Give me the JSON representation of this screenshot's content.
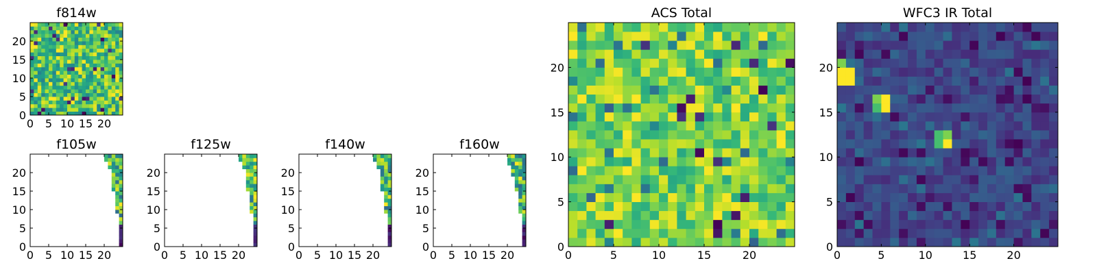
{
  "chart_data": [
    {
      "id": "f814w",
      "type": "heatmap",
      "title": "f814w",
      "xlim": [
        0,
        25
      ],
      "ylim": [
        0,
        25
      ],
      "xticks": [
        0,
        5,
        10,
        15,
        20
      ],
      "yticks": [
        0,
        5,
        10,
        15,
        20
      ],
      "grid": false,
      "coverage": "full",
      "texture": "noisy",
      "colormap": "viridis"
    },
    {
      "id": "f105w",
      "type": "heatmap",
      "title": "f105w",
      "xlim": [
        0,
        25
      ],
      "ylim": [
        0,
        25
      ],
      "xticks": [
        0,
        5,
        10,
        15,
        20
      ],
      "yticks": [
        0,
        5,
        10,
        15,
        20
      ],
      "grid": false,
      "coverage": "right-edge",
      "colormap": "viridis",
      "edge": [
        [
          20,
          23,
          24
        ],
        [
          20,
          23,
          24
        ],
        [
          21,
          24,
          24
        ],
        [
          21,
          24,
          24
        ],
        [
          22,
          24,
          24
        ],
        [
          22,
          24,
          24
        ],
        [
          22,
          24,
          24
        ],
        [
          22,
          24,
          24
        ],
        [
          22,
          24,
          24
        ],
        [
          22,
          24,
          24
        ],
        [
          23,
          24,
          24
        ],
        [
          23,
          24,
          24
        ],
        [
          23,
          24,
          24
        ],
        [
          23,
          24,
          24
        ],
        [
          23,
          24,
          24
        ],
        [
          23,
          24,
          24
        ],
        [
          24,
          24,
          24
        ],
        [
          24,
          24,
          24
        ],
        [
          24,
          24,
          24
        ],
        [
          24,
          24,
          24
        ],
        [
          24,
          24,
          24
        ],
        [
          24,
          24,
          24
        ],
        [
          24,
          24,
          24
        ],
        [
          24,
          24,
          24
        ],
        [
          24,
          24,
          24
        ]
      ]
    },
    {
      "id": "f125w",
      "type": "heatmap",
      "title": "f125w",
      "xlim": [
        0,
        25
      ],
      "ylim": [
        0,
        25
      ],
      "xticks": [
        0,
        5,
        10,
        15,
        20
      ],
      "yticks": [
        0,
        5,
        10,
        15,
        20
      ],
      "grid": false,
      "coverage": "right-edge",
      "colormap": "viridis",
      "edge": [
        [
          20,
          22,
          24
        ],
        [
          20,
          22,
          24
        ],
        [
          21,
          23,
          24
        ],
        [
          21,
          23,
          24
        ],
        [
          22,
          23,
          24
        ],
        [
          22,
          23,
          24
        ],
        [
          22,
          23,
          24
        ],
        [
          22,
          23,
          24
        ],
        [
          22,
          23,
          24
        ],
        [
          22,
          23,
          24
        ],
        [
          23,
          24,
          24
        ],
        [
          23,
          24,
          24
        ],
        [
          23,
          24,
          24
        ],
        [
          23,
          24,
          24
        ],
        [
          23,
          24,
          24
        ],
        [
          23,
          24,
          24
        ],
        [
          24,
          24,
          24
        ],
        [
          24,
          24,
          24
        ],
        [
          24,
          24,
          24
        ],
        [
          24,
          24,
          24
        ],
        [
          24,
          24,
          24
        ],
        [
          24,
          24,
          24
        ],
        [
          24,
          24,
          24
        ],
        [
          24,
          24,
          24
        ],
        [
          24,
          24,
          24
        ]
      ]
    },
    {
      "id": "f140w",
      "type": "heatmap",
      "title": "f140w",
      "xlim": [
        0,
        25
      ],
      "ylim": [
        0,
        25
      ],
      "xticks": [
        0,
        5,
        10,
        15,
        20
      ],
      "yticks": [
        0,
        5,
        10,
        15,
        20
      ],
      "grid": false,
      "coverage": "right-edge",
      "colormap": "viridis",
      "edge": [
        [
          20,
          22,
          24
        ],
        [
          20,
          22,
          24
        ],
        [
          21,
          23,
          24
        ],
        [
          21,
          23,
          24
        ],
        [
          22,
          23,
          24
        ],
        [
          22,
          23,
          24
        ],
        [
          22,
          23,
          24
        ],
        [
          22,
          23,
          24
        ],
        [
          22,
          23,
          24
        ],
        [
          22,
          23,
          24
        ],
        [
          23,
          24,
          24
        ],
        [
          23,
          24,
          24
        ],
        [
          23,
          24,
          24
        ],
        [
          23,
          24,
          24
        ],
        [
          23,
          24,
          24
        ],
        [
          23,
          24,
          24
        ],
        [
          24,
          24,
          24
        ],
        [
          24,
          24,
          24
        ],
        [
          24,
          24,
          24
        ],
        [
          24,
          24,
          24
        ],
        [
          24,
          24,
          24
        ],
        [
          24,
          24,
          24
        ],
        [
          24,
          24,
          24
        ],
        [
          24,
          24,
          24
        ],
        [
          24,
          24,
          24
        ]
      ]
    },
    {
      "id": "f160w",
      "type": "heatmap",
      "title": "f160w",
      "xlim": [
        0,
        25
      ],
      "ylim": [
        0,
        25
      ],
      "xticks": [
        0,
        5,
        10,
        15,
        20
      ],
      "yticks": [
        0,
        5,
        10,
        15,
        20
      ],
      "grid": false,
      "coverage": "right-edge",
      "colormap": "viridis",
      "edge": [
        [
          20,
          22,
          24
        ],
        [
          20,
          22,
          24
        ],
        [
          20,
          22,
          24
        ],
        [
          21,
          23,
          24
        ],
        [
          21,
          23,
          24
        ],
        [
          21,
          23,
          24
        ],
        [
          22,
          23,
          24
        ],
        [
          22,
          23,
          24
        ],
        [
          22,
          23,
          24
        ],
        [
          22,
          23,
          24
        ],
        [
          23,
          24,
          24
        ],
        [
          23,
          24,
          24
        ],
        [
          23,
          24,
          24
        ],
        [
          23,
          24,
          24
        ],
        [
          23,
          24,
          24
        ],
        [
          23,
          24,
          24
        ],
        [
          24,
          24,
          24
        ],
        [
          24,
          24,
          24
        ],
        [
          24,
          24,
          24
        ],
        [
          24,
          24,
          24
        ],
        [
          24,
          24,
          24
        ],
        [
          24,
          24,
          24
        ],
        [
          24,
          24,
          24
        ],
        [
          24,
          24,
          24
        ],
        [
          24,
          24,
          24
        ]
      ]
    },
    {
      "id": "acs_total",
      "type": "heatmap",
      "title": "ACS Total",
      "xlim": [
        0,
        25
      ],
      "ylim": [
        0,
        25
      ],
      "xticks": [
        0,
        5,
        10,
        15,
        20
      ],
      "yticks": [
        0,
        5,
        10,
        15,
        20
      ],
      "grid": false,
      "coverage": "full",
      "texture": "bright",
      "colormap": "viridis"
    },
    {
      "id": "wfc3_ir_total",
      "type": "heatmap",
      "title": "WFC3 IR Total",
      "xlim": [
        0,
        25
      ],
      "ylim": [
        0,
        25
      ],
      "xticks": [
        0,
        5,
        10,
        15,
        20
      ],
      "yticks": [
        0,
        5,
        10,
        15,
        20
      ],
      "grid": false,
      "coverage": "full",
      "texture": "dark",
      "colormap": "viridis",
      "hotspots": [
        [
          0,
          18,
          1.0
        ],
        [
          1,
          18,
          1.0
        ],
        [
          0,
          19,
          1.0
        ],
        [
          1,
          19,
          1.0
        ],
        [
          0,
          20,
          0.8
        ],
        [
          4,
          16,
          0.8
        ],
        [
          5,
          16,
          1.0
        ],
        [
          5,
          15,
          1.0
        ],
        [
          4,
          15,
          0.7
        ],
        [
          11,
          12,
          0.7
        ],
        [
          12,
          12,
          0.8
        ],
        [
          12,
          11,
          1.0
        ],
        [
          11,
          11,
          0.7
        ]
      ]
    }
  ]
}
